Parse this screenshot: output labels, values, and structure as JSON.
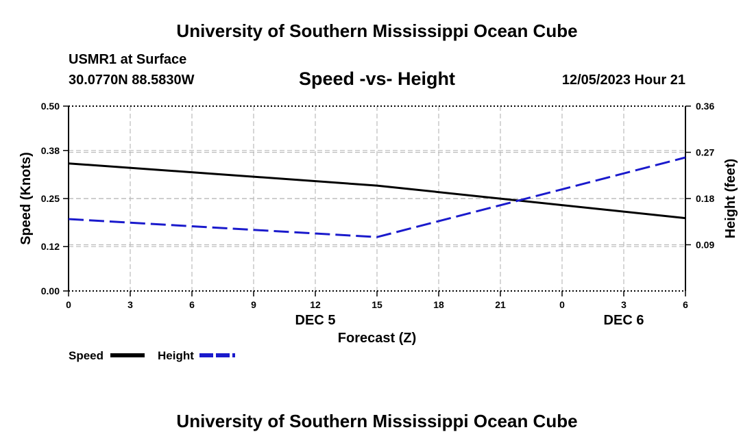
{
  "header": {
    "title_top": "University of Southern Mississippi Ocean Cube",
    "title_bottom": "University of Southern Mississippi Ocean Cube",
    "station": "USMR1 at Surface",
    "coords": "30.0770N  88.5830W",
    "datetime": "12/05/2023 Hour 21"
  },
  "colors": {
    "speed": "#000000",
    "height": "#1a1acc",
    "grid": "#bbbbbb"
  },
  "chart_data": {
    "type": "line",
    "title": "Speed -vs- Height",
    "xlabel": "Forecast (Z)",
    "ylabel": "Speed (Knots)",
    "y2label": "Height (feet)",
    "x": [
      0,
      3,
      6,
      9,
      12,
      15,
      18,
      21,
      24,
      27,
      30
    ],
    "x_tick_labels": [
      "0",
      "3",
      "6",
      "9",
      "12",
      "15",
      "18",
      "21",
      "0",
      "3",
      "6"
    ],
    "date_labels": [
      {
        "x": 12,
        "label": "DEC 5"
      },
      {
        "x": 27,
        "label": "DEC 6"
      }
    ],
    "xlim": [
      0,
      30
    ],
    "ylim": [
      0,
      0.5
    ],
    "y_ticks": [
      0.0,
      0.12,
      0.25,
      0.38,
      0.5
    ],
    "y_tick_labels": [
      "0.00",
      "0.12",
      "0.25",
      "0.38",
      "0.50"
    ],
    "y2lim": [
      0,
      0.36
    ],
    "y2_ticks": [
      0.09,
      0.18,
      0.27,
      0.36
    ],
    "y2_tick_labels": [
      "0.09",
      "0.18",
      "0.27",
      "0.36"
    ],
    "grid": true,
    "series": [
      {
        "name": "Speed",
        "axis": "left",
        "style": "solid",
        "points": [
          [
            0,
            0.345
          ],
          [
            15,
            0.285
          ],
          [
            30,
            0.197
          ]
        ]
      },
      {
        "name": "Height",
        "axis": "right",
        "style": "dashed",
        "points": [
          [
            0,
            0.14
          ],
          [
            15,
            0.105
          ],
          [
            30,
            0.26
          ]
        ]
      }
    ],
    "legend": [
      {
        "label": "Speed",
        "style": "solid"
      },
      {
        "label": "Height",
        "style": "dashed"
      }
    ]
  }
}
